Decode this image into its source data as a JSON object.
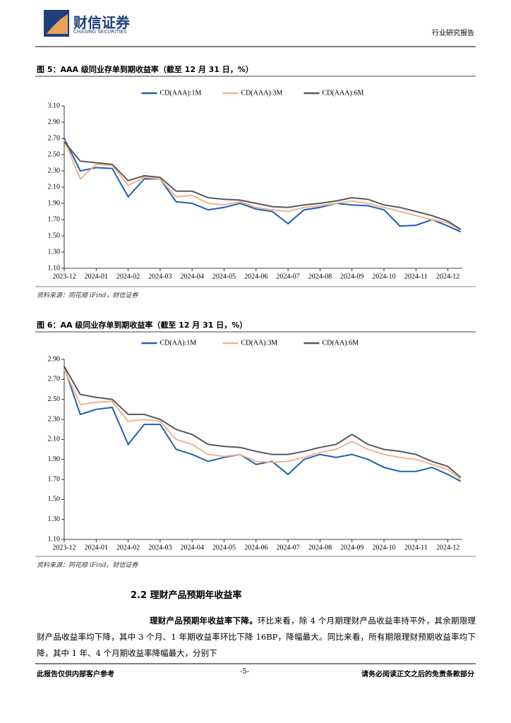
{
  "header": {
    "brand": "财信证券",
    "brand_en": "CHASING SECURITIES",
    "report_type": "行业研究报告"
  },
  "chart_data": [
    {
      "type": "line",
      "title": "图 5：AAA 级同业存单到期收益率（截至 12 月 31 日，%）",
      "source": "资料来源：同花顺 iFind，财信证券",
      "x": [
        0,
        0.5,
        1,
        1.5,
        2,
        2.5,
        3,
        3.5,
        4,
        4.5,
        5,
        5.5,
        6,
        6.5,
        7,
        7.5,
        8,
        8.5,
        9,
        9.5,
        10,
        10.5,
        11,
        11.5,
        12,
        12.4
      ],
      "xlim": [
        0,
        12.45
      ],
      "xticks": [
        {
          "value": 0,
          "label": "2023-12"
        },
        {
          "value": 1,
          "label": "2024-01"
        },
        {
          "value": 2,
          "label": "2024-02"
        },
        {
          "value": 3,
          "label": "2024-03"
        },
        {
          "value": 4,
          "label": "2024-04"
        },
        {
          "value": 5,
          "label": "2024-05"
        },
        {
          "value": 6,
          "label": "2024-06"
        },
        {
          "value": 7,
          "label": "2024-07"
        },
        {
          "value": 8,
          "label": "2024-08"
        },
        {
          "value": 9,
          "label": "2024-09"
        },
        {
          "value": 10,
          "label": "2024-10"
        },
        {
          "value": 11,
          "label": "2024-11"
        },
        {
          "value": 12,
          "label": "2024-12"
        }
      ],
      "ylim": [
        1.1,
        3.1
      ],
      "yticks": [
        {
          "value": 1.1,
          "label": "1.10"
        },
        {
          "value": 1.3,
          "label": "1.30"
        },
        {
          "value": 1.5,
          "label": "1.50"
        },
        {
          "value": 1.7,
          "label": "1.70"
        },
        {
          "value": 1.9,
          "label": "1.90"
        },
        {
          "value": 2.1,
          "label": "2.10"
        },
        {
          "value": 2.3,
          "label": "2.30"
        },
        {
          "value": 2.5,
          "label": "2.50"
        },
        {
          "value": 2.7,
          "label": "2.70"
        },
        {
          "value": 2.9,
          "label": "2.90"
        },
        {
          "value": 3.1,
          "label": "3.10"
        }
      ],
      "series": [
        {
          "name": "CD(AAA):1M",
          "color": "#1f5fb4",
          "values": [
            2.7,
            2.3,
            2.34,
            2.33,
            1.98,
            2.2,
            2.2,
            1.92,
            1.9,
            1.82,
            1.85,
            1.9,
            1.83,
            1.8,
            1.65,
            1.82,
            1.85,
            1.9,
            1.88,
            1.87,
            1.82,
            1.62,
            1.63,
            1.7,
            1.62,
            1.55
          ]
        },
        {
          "name": "CD(AAA):3M",
          "color": "#f0b48c",
          "values": [
            2.68,
            2.2,
            2.38,
            2.37,
            2.12,
            2.22,
            2.2,
            1.98,
            2.0,
            1.9,
            1.88,
            1.92,
            1.85,
            1.82,
            1.8,
            1.85,
            1.87,
            1.9,
            1.93,
            1.9,
            1.85,
            1.8,
            1.75,
            1.7,
            1.66,
            1.57
          ]
        },
        {
          "name": "CD(AAA):6M",
          "color": "#595959",
          "values": [
            2.66,
            2.42,
            2.4,
            2.38,
            2.18,
            2.24,
            2.22,
            2.05,
            2.05,
            1.97,
            1.95,
            1.94,
            1.9,
            1.86,
            1.85,
            1.88,
            1.9,
            1.93,
            1.97,
            1.95,
            1.88,
            1.85,
            1.8,
            1.75,
            1.68,
            1.58
          ]
        }
      ]
    },
    {
      "type": "line",
      "title": "图 6：AA 级同业存单到期收益率（截至 12 月 31 日，%）",
      "source": "资料来源：同花顺 iFind，财信证券",
      "x": [
        0,
        0.5,
        1,
        1.5,
        2,
        2.5,
        3,
        3.5,
        4,
        4.5,
        5,
        5.5,
        6,
        6.5,
        7,
        7.5,
        8,
        8.5,
        9,
        9.5,
        10,
        10.5,
        11,
        11.5,
        12,
        12.4
      ],
      "xlim": [
        0,
        12.45
      ],
      "xticks": [
        {
          "value": 0,
          "label": "2023-12"
        },
        {
          "value": 1,
          "label": "2024-01"
        },
        {
          "value": 2,
          "label": "2024-02"
        },
        {
          "value": 3,
          "label": "2024-03"
        },
        {
          "value": 4,
          "label": "2024-04"
        },
        {
          "value": 5,
          "label": "2024-05"
        },
        {
          "value": 6,
          "label": "2024-06"
        },
        {
          "value": 7,
          "label": "2024-07"
        },
        {
          "value": 8,
          "label": "2024-08"
        },
        {
          "value": 9,
          "label": "2024-09"
        },
        {
          "value": 10,
          "label": "2024-10"
        },
        {
          "value": 11,
          "label": "2024-11"
        },
        {
          "value": 12,
          "label": "2024-12"
        }
      ],
      "ylim": [
        1.1,
        2.9
      ],
      "yticks": [
        {
          "value": 1.1,
          "label": "1.10"
        },
        {
          "value": 1.3,
          "label": "1.30"
        },
        {
          "value": 1.5,
          "label": "1.50"
        },
        {
          "value": 1.7,
          "label": "1.70"
        },
        {
          "value": 1.9,
          "label": "1.90"
        },
        {
          "value": 2.1,
          "label": "2.10"
        },
        {
          "value": 2.3,
          "label": "2.30"
        },
        {
          "value": 2.5,
          "label": "2.50"
        },
        {
          "value": 2.7,
          "label": "2.70"
        },
        {
          "value": 2.9,
          "label": "2.90"
        }
      ],
      "series": [
        {
          "name": "CD(AA):1M",
          "color": "#1f5fb4",
          "values": [
            2.82,
            2.35,
            2.4,
            2.42,
            2.05,
            2.25,
            2.25,
            2.0,
            1.95,
            1.88,
            1.92,
            1.95,
            1.85,
            1.88,
            1.75,
            1.9,
            1.95,
            1.92,
            1.95,
            1.9,
            1.82,
            1.78,
            1.78,
            1.82,
            1.75,
            1.68
          ]
        },
        {
          "name": "CD(AA):3M",
          "color": "#f0b48c",
          "values": [
            2.8,
            2.45,
            2.47,
            2.48,
            2.28,
            2.3,
            2.28,
            2.1,
            2.05,
            1.95,
            1.93,
            1.95,
            1.88,
            1.87,
            1.88,
            1.92,
            1.97,
            2.0,
            2.08,
            2.0,
            1.95,
            1.92,
            1.9,
            1.85,
            1.8,
            1.7
          ]
        },
        {
          "name": "CD(AA):6M",
          "color": "#595959",
          "values": [
            2.83,
            2.55,
            2.52,
            2.5,
            2.35,
            2.35,
            2.3,
            2.2,
            2.15,
            2.05,
            2.03,
            2.02,
            1.98,
            1.95,
            1.95,
            1.98,
            2.02,
            2.05,
            2.15,
            2.05,
            2.0,
            1.98,
            1.95,
            1.88,
            1.83,
            1.72
          ]
        }
      ]
    }
  ],
  "section": {
    "heading": "2.2 理财产品预期年收益率"
  },
  "paragraph": {
    "lead": "理财产品预期年收益率下降。",
    "text": "环比来看，除 4 个月期理财产品收益率持平外，其余期限理财产品收益率均下降，其中 3 个月、1 年期收益率环比下降 16BP，降幅最大。同比来看，所有期限理财预期收益率均下降，其中 1 年、4 个月期收益率降幅最大，分别下"
  },
  "footer": {
    "left": "此报告仅供内部客户参考",
    "page": "-5-",
    "right": "请务必阅读正文之后的免责条款部分"
  }
}
